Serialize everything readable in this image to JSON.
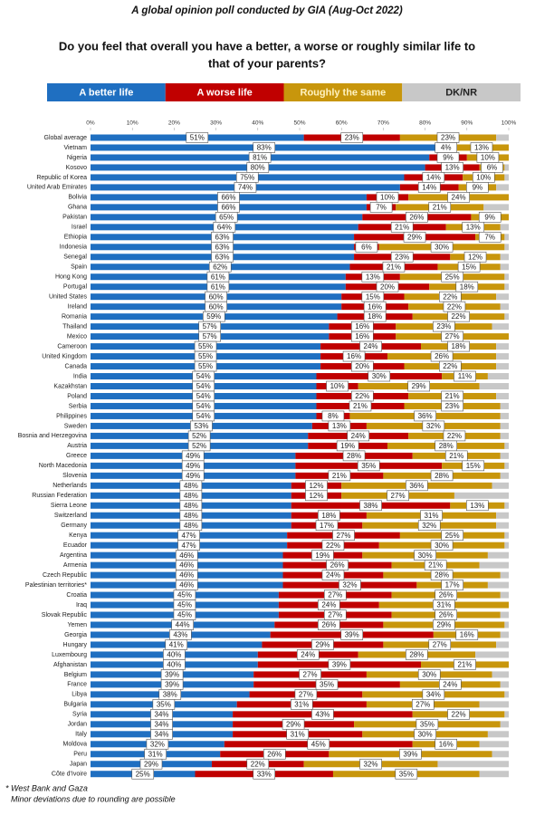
{
  "chart_data": {
    "type": "stacked-bar-horizontal",
    "title": "A global opinion poll conducted by GIA (Aug-Oct 2022)",
    "question": [
      "Do you feel that overall you have a better, a worse or roughly similar life to",
      "that of your parents?"
    ],
    "footnotes": [
      "* West Bank and Gaza",
      "Minor deviations due to rounding are possible"
    ],
    "xlim": [
      0,
      100
    ],
    "xticks": [
      {
        "value": 0,
        "label": "0%"
      },
      {
        "value": 10,
        "label": "10%"
      },
      {
        "value": 20,
        "label": "20%"
      },
      {
        "value": 30,
        "label": "30%"
      },
      {
        "value": 40,
        "label": "40%"
      },
      {
        "value": 50,
        "label": "50%"
      },
      {
        "value": 60,
        "label": "60%"
      },
      {
        "value": 70,
        "label": "70%"
      },
      {
        "value": 80,
        "label": "80%"
      },
      {
        "value": 90,
        "label": "90%"
      },
      {
        "value": 100,
        "label": "100%"
      }
    ],
    "categories": [
      "Global average",
      "Vietnam",
      "Nigeria",
      "Kosovo",
      "Republic of Korea",
      "United Arab Emirates",
      "Bolivia",
      "Ghana",
      "Pakistan",
      "Israel",
      "Ethiopia",
      "Indonesia",
      "Senegal",
      "Spain",
      "Hong Kong",
      "Portugal",
      "United States",
      "Ireland",
      "Romania",
      "Thailand",
      "Mexico",
      "Cameroon",
      "United Kingdom",
      "Canada",
      "India",
      "Kazakhstan",
      "Poland",
      "Serbia",
      "Philippines",
      "Sweden",
      "Bosnia and Herzegovina",
      "Austria",
      "Greece",
      "North Macedonia",
      "Slovenia",
      "Netherlands",
      "Russian Federation",
      "Sierra Leone",
      "Switzerland",
      "Germany",
      "Kenya",
      "Ecuador",
      "Argentina",
      "Armenia",
      "Czech Republic",
      "Palestinian territories*",
      "Croatia",
      "Iraq",
      "Slovak Republic",
      "Yemen",
      "Georgia",
      "Hungary",
      "Luxembourg",
      "Afghanistan",
      "Belgium",
      "France",
      "Libya",
      "Bulgaria",
      "Syria",
      "Jordan",
      "Italy",
      "Moldova",
      "Peru",
      "Japan",
      "Côte d'Ivoire"
    ],
    "series": [
      {
        "name": "A better life",
        "color": "#1f6fc1",
        "text_color": "#ffffff",
        "values": [
          51,
          83,
          81,
          80,
          75,
          74,
          66,
          66,
          65,
          64,
          63,
          63,
          63,
          62,
          61,
          61,
          60,
          60,
          59,
          57,
          57,
          55,
          55,
          55,
          54,
          54,
          54,
          54,
          54,
          53,
          52,
          52,
          49,
          49,
          49,
          48,
          48,
          48,
          48,
          48,
          47,
          47,
          46,
          46,
          46,
          46,
          45,
          45,
          45,
          44,
          43,
          41,
          40,
          40,
          39,
          39,
          38,
          35,
          34,
          34,
          34,
          32,
          31,
          29,
          25
        ],
        "value_labels": [
          "51%",
          "83%",
          "81%",
          "80%",
          "75%",
          "74%",
          "66%",
          "66%",
          "65%",
          "64%",
          "63%",
          "63%",
          "63%",
          "62%",
          "61%",
          "61%",
          "60%",
          "60%",
          "59%",
          "57%",
          "57%",
          "55%",
          "55%",
          "55%",
          "54%",
          "54%",
          "54%",
          "54%",
          "54%",
          "53%",
          "52%",
          "52%",
          "49%",
          "49%",
          "49%",
          "48%",
          "48%",
          "48%",
          "48%",
          "48%",
          "47%",
          "47%",
          "46%",
          "46%",
          "46%",
          "46%",
          "45%",
          "45%",
          "45%",
          "44%",
          "43%",
          "41%",
          "40%",
          "40%",
          "39%",
          "39%",
          "38%",
          "35%",
          "34%",
          "34%",
          "34%",
          "32%",
          "31%",
          "29%",
          "25%"
        ]
      },
      {
        "name": "A worse life",
        "color": "#c00000",
        "text_color": "#ffffff",
        "values": [
          23,
          4,
          9,
          13,
          14,
          14,
          10,
          7,
          26,
          21,
          29,
          6,
          23,
          21,
          13,
          20,
          15,
          16,
          18,
          16,
          16,
          24,
          16,
          20,
          30,
          10,
          22,
          21,
          8,
          13,
          24,
          19,
          28,
          35,
          21,
          12,
          12,
          38,
          18,
          17,
          27,
          22,
          19,
          26,
          24,
          32,
          27,
          24,
          27,
          26,
          39,
          29,
          24,
          39,
          27,
          35,
          27,
          31,
          43,
          29,
          31,
          45,
          26,
          22,
          33
        ],
        "value_labels": [
          "23%",
          "4%",
          "9%",
          "13%",
          "14%",
          "14%",
          "10%",
          "7%",
          "26%",
          "21%",
          "29%",
          "6%",
          "23%",
          "21%",
          "13%",
          "20%",
          "15%",
          "16%",
          "18%",
          "16%",
          "16%",
          "24%",
          "16%",
          "20%",
          "30%",
          "10%",
          "22%",
          "21%",
          "8%",
          "13%",
          "24%",
          "19%",
          "28%",
          "35%",
          "21%",
          "12%",
          "12%",
          "38%",
          "18%",
          "17%",
          "27%",
          "22%",
          "19%",
          "26%",
          "24%",
          "32%",
          "27%",
          "24%",
          "27%",
          "26%",
          "39%",
          "29%",
          "24%",
          "39%",
          "27%",
          "35%",
          "27%",
          "31%",
          "43%",
          "29%",
          "31%",
          "45%",
          "26%",
          "22%",
          "33%"
        ]
      },
      {
        "name": "Roughly the same",
        "color": "#c8960c",
        "text_color": "#fff2c0",
        "values": [
          23,
          13,
          10,
          6,
          10,
          9,
          24,
          21,
          9,
          13,
          7,
          30,
          12,
          15,
          25,
          18,
          22,
          22,
          22,
          23,
          27,
          18,
          26,
          22,
          11,
          29,
          21,
          23,
          36,
          32,
          22,
          28,
          21,
          15,
          28,
          36,
          27,
          13,
          31,
          32,
          25,
          30,
          30,
          21,
          28,
          17,
          26,
          31,
          26,
          29,
          16,
          27,
          28,
          21,
          30,
          24,
          34,
          27,
          22,
          35,
          30,
          16,
          39,
          32,
          35
        ],
        "value_labels": [
          "23%",
          "13%",
          "10%",
          "6%",
          "10%",
          "9%",
          "24%",
          "21%",
          "9%",
          "13%",
          "7%",
          "30%",
          "12%",
          "15%",
          "25%",
          "18%",
          "22%",
          "22%",
          "22%",
          "23%",
          "27%",
          "18%",
          "26%",
          "22%",
          "11%",
          "29%",
          "21%",
          "23%",
          "36%",
          "32%",
          "22%",
          "28%",
          "21%",
          "15%",
          "28%",
          "36%",
          "27%",
          "13%",
          "31%",
          "32%",
          "25%",
          "30%",
          "30%",
          "21%",
          "28%",
          "17%",
          "26%",
          "31%",
          "26%",
          "29%",
          "16%",
          "27%",
          "28%",
          "21%",
          "30%",
          "24%",
          "34%",
          "27%",
          "22%",
          "35%",
          "30%",
          "16%",
          "39%",
          "32%",
          "35%"
        ]
      },
      {
        "name": "DK/NR",
        "color": "#c8c8c8",
        "text_color": "#222222",
        "values": [
          3,
          0,
          0,
          1,
          1,
          3,
          0,
          6,
          0,
          2,
          1,
          1,
          2,
          2,
          1,
          1,
          3,
          2,
          1,
          4,
          0,
          3,
          3,
          3,
          5,
          7,
          3,
          2,
          2,
          2,
          2,
          1,
          2,
          1,
          2,
          4,
          13,
          1,
          3,
          3,
          1,
          1,
          5,
          7,
          2,
          5,
          2,
          0,
          2,
          1,
          2,
          3,
          8,
          0,
          4,
          2,
          1,
          7,
          1,
          2,
          5,
          7,
          4,
          17,
          7
        ]
      }
    ]
  }
}
